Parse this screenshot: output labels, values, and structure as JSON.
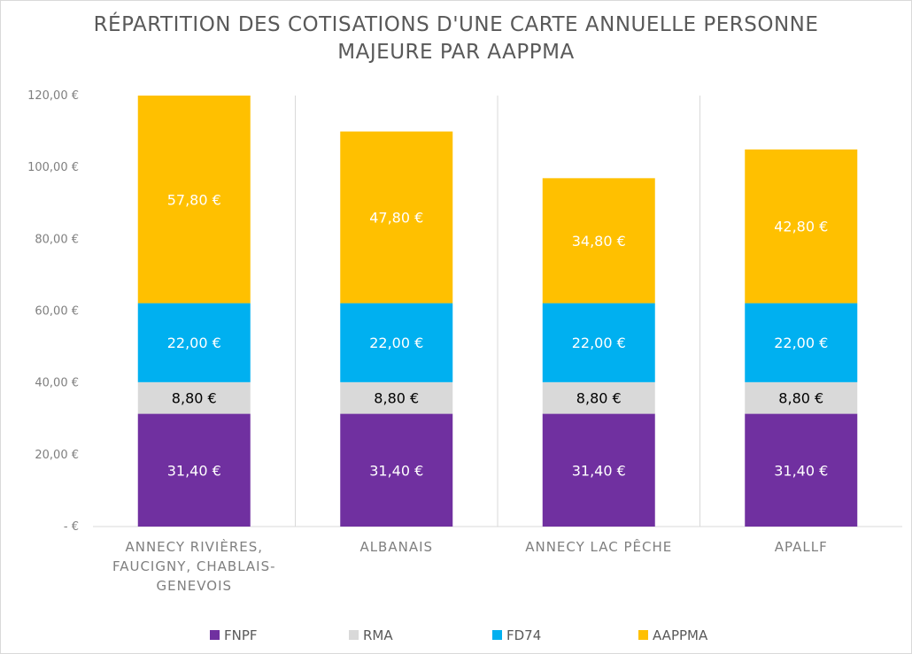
{
  "chart_data": {
    "type": "bar",
    "stacked": true,
    "title_lines": [
      "RÉPARTITION DES COTISATIONS D'UNE CARTE ANNUELLE PERSONNE",
      "MAJEURE PAR AAPPMA"
    ],
    "categories": [
      [
        "ANNECY RIVIÈRES,",
        "FAUCIGNY, CHABLAIS-",
        "GENEVOIS"
      ],
      [
        "ALBANAIS"
      ],
      [
        "ANNECY LAC PÊCHE"
      ],
      [
        "APALLF"
      ]
    ],
    "series": [
      {
        "name": "FNPF",
        "color": "#7030a0",
        "label_color": "#ffffff",
        "values": [
          31.4,
          31.4,
          31.4,
          31.4
        ],
        "labels": [
          "31,40 €",
          "31,40 €",
          "31,40 €",
          "31,40 €"
        ]
      },
      {
        "name": "RMA",
        "color": "#d9d9d9",
        "label_color": "#000000",
        "values": [
          8.8,
          8.8,
          8.8,
          8.8
        ],
        "labels": [
          "8,80 €",
          "8,80 €",
          "8,80 €",
          "8,80 €"
        ]
      },
      {
        "name": "FD74",
        "color": "#00b0f0",
        "label_color": "#ffffff",
        "values": [
          22.0,
          22.0,
          22.0,
          22.0
        ],
        "labels": [
          "22,00 €",
          "22,00 €",
          "22,00 €",
          "22,00 €"
        ]
      },
      {
        "name": "AAPPMA",
        "color": "#ffc000",
        "label_color": "#ffffff",
        "values": [
          57.8,
          47.8,
          34.8,
          42.8
        ],
        "labels": [
          "57,80 €",
          "47,80 €",
          "34,80 €",
          "42,80 €"
        ]
      }
    ],
    "ylim": [
      0,
      120
    ],
    "y_ticks": [
      0,
      20,
      40,
      60,
      80,
      100,
      120
    ],
    "y_tick_labels": [
      "-  €",
      "20,00 €",
      "40,00 €",
      "60,00 €",
      "80,00 €",
      "100,00 €",
      "120,00 €"
    ],
    "grid": "vertical separators between categories",
    "legend_position": "bottom"
  }
}
